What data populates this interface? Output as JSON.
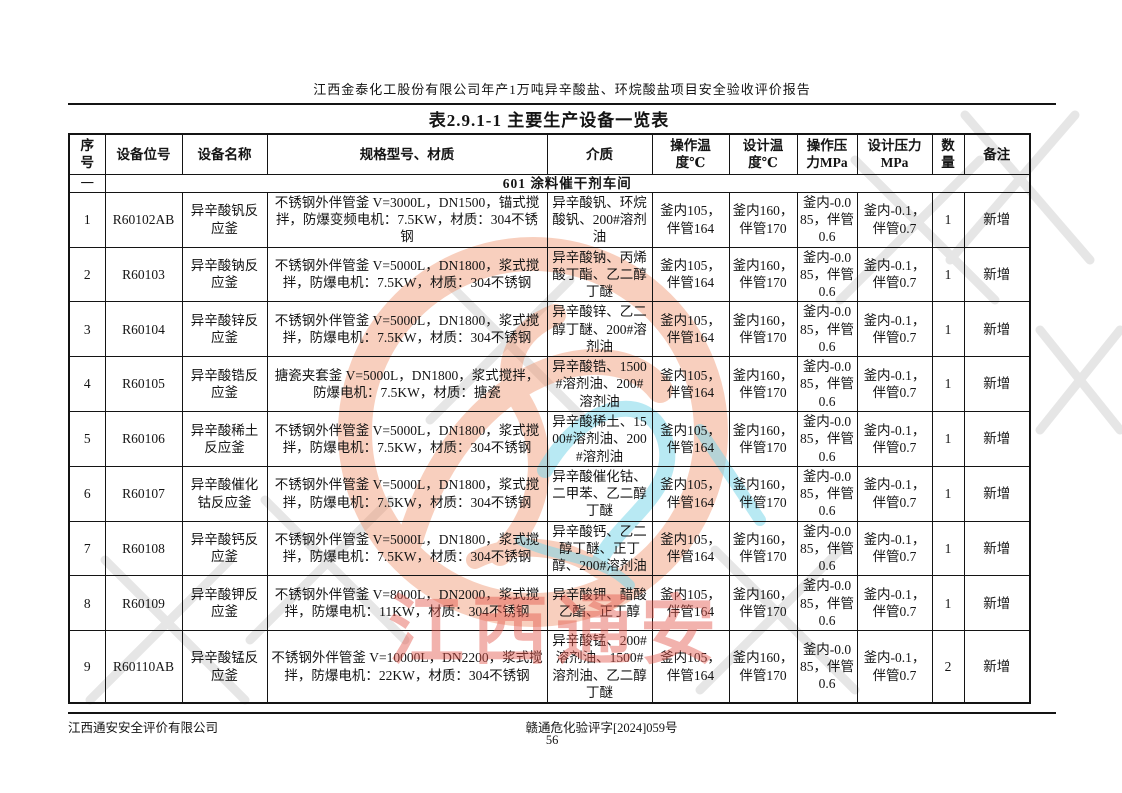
{
  "page": {
    "header_title": "江西金泰化工股份有限公司年产1万吨异辛酸盐、环烷酸盐项目安全验收评价报告",
    "footer": {
      "company": "江西通安安全评价有限公司",
      "doc_no": "赣通危化验评字[2024]059号",
      "page_number": "56"
    },
    "watermark": {
      "red_text": "江西通安",
      "accent_orange": "#ee8a5f",
      "accent_red": "#e4564b",
      "accent_cyan": "#7fd8ea",
      "accent_gray": "#c9c9c9"
    }
  },
  "table": {
    "title": "表2.9.1-1 主要生产设备一览表",
    "columns": [
      {
        "key": "no",
        "label": "序\n号"
      },
      {
        "key": "tag",
        "label": "设备位号"
      },
      {
        "key": "name",
        "label": "设备名称"
      },
      {
        "key": "spec",
        "label": "规格型号、材质"
      },
      {
        "key": "medium",
        "label": "介质"
      },
      {
        "key": "op_temp",
        "label": "操作温\n度℃"
      },
      {
        "key": "design_temp",
        "label": "设计温\n度℃"
      },
      {
        "key": "op_press",
        "label": "操作压\n力MPa"
      },
      {
        "key": "design_press",
        "label": "设计压力\nMPa"
      },
      {
        "key": "qty",
        "label": "数\n量"
      },
      {
        "key": "remark",
        "label": "备注"
      }
    ],
    "section": {
      "no": "一",
      "title": "601 涂料催干剂车间"
    },
    "rows": [
      {
        "no": "1",
        "tag": "R60102AB",
        "name": "异辛酸钒反应釜",
        "spec": "不锈钢外伴管釜 V=3000L，DN1500，锚式搅拌，防爆变频电机：7.5KW，材质：304不锈钢",
        "medium": "异辛酸钒、环烷酸钒、200#溶剂油",
        "op_temp": "釜内105，伴管164",
        "design_temp": "釜内160，伴管170",
        "op_press": "釜内-0.085，伴管0.6",
        "design_press": "釜内-0.1，伴管0.7",
        "qty": "1",
        "remark": "新增"
      },
      {
        "no": "2",
        "tag": "R60103",
        "name": "异辛酸钠反应釜",
        "spec": "不锈钢外伴管釜 V=5000L，DN1800，浆式搅拌，防爆电机：7.5KW，材质：304不锈钢",
        "medium": "异辛酸钠、丙烯酸丁酯、乙二醇丁醚",
        "op_temp": "釜内105，伴管164",
        "design_temp": "釜内160，伴管170",
        "op_press": "釜内-0.085，伴管0.6",
        "design_press": "釜内-0.1，伴管0.7",
        "qty": "1",
        "remark": "新增"
      },
      {
        "no": "3",
        "tag": "R60104",
        "name": "异辛酸锌反应釜",
        "spec": "不锈钢外伴管釜 V=5000L，DN1800，浆式搅拌，防爆电机：7.5KW，材质：304不锈钢",
        "medium": "异辛酸锌、乙二醇丁醚、200#溶剂油",
        "op_temp": "釜内105，伴管164",
        "design_temp": "釜内160，伴管170",
        "op_press": "釜内-0.085，伴管0.6",
        "design_press": "釜内-0.1，伴管0.7",
        "qty": "1",
        "remark": "新增"
      },
      {
        "no": "4",
        "tag": "R60105",
        "name": "异辛酸锆反应釜",
        "spec": "搪瓷夹套釜 V=5000L，DN1800，浆式搅拌，防爆电机：7.5KW，材质：搪瓷",
        "medium": "异辛酸锆、1500#溶剂油、200#溶剂油",
        "op_temp": "釜内105，伴管164",
        "design_temp": "釜内160，伴管170",
        "op_press": "釜内-0.085，伴管0.6",
        "design_press": "釜内-0.1，伴管0.7",
        "qty": "1",
        "remark": "新增"
      },
      {
        "no": "5",
        "tag": "R60106",
        "name": "异辛酸稀土反应釜",
        "spec": "不锈钢外伴管釜 V=5000L，DN1800，浆式搅拌，防爆电机：7.5KW，材质：304不锈钢",
        "medium": "异辛酸稀土、1500#溶剂油、200#溶剂油",
        "op_temp": "釜内105，伴管164",
        "design_temp": "釜内160，伴管170",
        "op_press": "釜内-0.085，伴管0.6",
        "design_press": "釜内-0.1，伴管0.7",
        "qty": "1",
        "remark": "新增"
      },
      {
        "no": "6",
        "tag": "R60107",
        "name": "异辛酸催化钴反应釜",
        "spec": "不锈钢外伴管釜 V=5000L，DN1800，浆式搅拌，防爆电机：7.5KW，材质：304不锈钢",
        "medium": "异辛酸催化钴、二甲苯、乙二醇丁醚",
        "op_temp": "釜内105，伴管164",
        "design_temp": "釜内160，伴管170",
        "op_press": "釜内-0.085，伴管0.6",
        "design_press": "釜内-0.1，伴管0.7",
        "qty": "1",
        "remark": "新增"
      },
      {
        "no": "7",
        "tag": "R60108",
        "name": "异辛酸钙反应釜",
        "spec": "不锈钢外伴管釜 V=5000L，DN1800，浆式搅拌，防爆电机：7.5KW，材质：304不锈钢",
        "medium": "异辛酸钙、乙二醇丁醚、正丁醇、200#溶剂油",
        "op_temp": "釜内105，伴管164",
        "design_temp": "釜内160，伴管170",
        "op_press": "釜内-0.085，伴管0.6",
        "design_press": "釜内-0.1，伴管0.7",
        "qty": "1",
        "remark": "新增"
      },
      {
        "no": "8",
        "tag": "R60109",
        "name": "异辛酸钾反应釜",
        "spec": "不锈钢外伴管釜 V=8000L，DN2000，浆式搅拌，防爆电机：11KW，材质：304不锈钢",
        "medium": "异辛酸钾、醋酸乙酯、正丁醇",
        "op_temp": "釜内105，伴管164",
        "design_temp": "釜内160，伴管170",
        "op_press": "釜内-0.085，伴管0.6",
        "design_press": "釜内-0.1，伴管0.7",
        "qty": "1",
        "remark": "新增"
      },
      {
        "no": "9",
        "tag": "R60110AB",
        "name": "异辛酸锰反应釜",
        "spec": "不锈钢外伴管釜 V=10000L，DN2200，浆式搅拌，防爆电机：22KW，材质：304不锈钢",
        "medium": "异辛酸锰、200#溶剂油、1500#溶剂油、乙二醇丁醚",
        "op_temp": "釜内105，伴管164",
        "design_temp": "釜内160，伴管170",
        "op_press": "釜内-0.085，伴管0.6",
        "design_press": "釜内-0.1，伴管0.7",
        "qty": "2",
        "remark": "新增"
      }
    ]
  }
}
